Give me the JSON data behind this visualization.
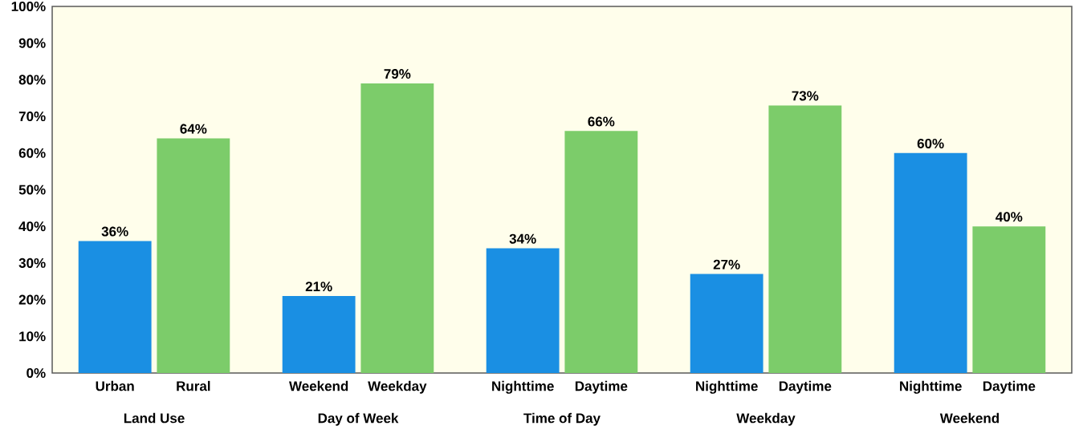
{
  "chart_data": {
    "type": "bar",
    "categories": [
      "Urban",
      "Rural",
      "Weekend",
      "Weekday",
      "Nighttime",
      "Daytime",
      "Nighttime",
      "Daytime",
      "Nighttime",
      "Daytime"
    ],
    "values": [
      36,
      64,
      21,
      79,
      34,
      66,
      27,
      73,
      60,
      40
    ],
    "value_labels": [
      "36%",
      "64%",
      "21%",
      "79%",
      "34%",
      "66%",
      "27%",
      "73%",
      "60%",
      "40%"
    ],
    "colors": [
      "#1a8fe3",
      "#7ccc6a",
      "#1a8fe3",
      "#7ccc6a",
      "#1a8fe3",
      "#7ccc6a",
      "#1a8fe3",
      "#7ccc6a",
      "#1a8fe3",
      "#7ccc6a"
    ],
    "annotations": [
      "Land Use",
      "Day of Week",
      "Time of Day",
      "Weekday",
      "Weekend"
    ],
    "ylim": [
      0,
      100
    ],
    "yticks": [
      {
        "value": 0,
        "label": "0%"
      },
      {
        "value": 10,
        "label": "10%"
      },
      {
        "value": 20,
        "label": "20%"
      },
      {
        "value": 30,
        "label": "30%"
      },
      {
        "value": 40,
        "label": "40%"
      },
      {
        "value": 50,
        "label": "50%"
      },
      {
        "value": 60,
        "label": "60%"
      },
      {
        "value": 70,
        "label": "70%"
      },
      {
        "value": 80,
        "label": "80%"
      },
      {
        "value": 90,
        "label": "90%"
      },
      {
        "value": 100,
        "label": "100%"
      }
    ],
    "data_labels": false
  }
}
